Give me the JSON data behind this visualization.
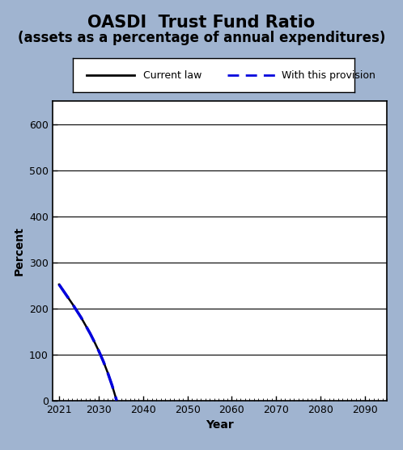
{
  "title": "OASDI  Trust Fund Ratio",
  "subtitle": "(assets as a percentage of annual expenditures)",
  "xlabel": "Year",
  "ylabel": "Percent",
  "bg_color": "#a0b4d0",
  "plot_bg_color": "#ffffff",
  "ylim": [
    0,
    650
  ],
  "xlim": [
    2019.5,
    2095
  ],
  "yticks": [
    0,
    100,
    200,
    300,
    400,
    500,
    600
  ],
  "xticks": [
    2021,
    2030,
    2040,
    2050,
    2060,
    2070,
    2080,
    2090
  ],
  "current_law_x": [
    2021,
    2022,
    2023,
    2024,
    2025,
    2026,
    2027,
    2028,
    2029,
    2030,
    2031,
    2032,
    2033,
    2034
  ],
  "current_law_y": [
    252,
    238,
    224,
    210,
    195,
    180,
    163,
    146,
    127,
    107,
    85,
    60,
    32,
    0
  ],
  "provision_x": [
    2021,
    2022,
    2023,
    2024,
    2025,
    2026,
    2027,
    2028,
    2029,
    2030,
    2031,
    2032,
    2033,
    2034
  ],
  "provision_y": [
    252,
    238,
    224,
    210,
    195,
    180,
    163,
    146,
    127,
    107,
    85,
    60,
    32,
    0
  ],
  "current_law_color": "#000000",
  "provision_color": "#0000dd",
  "title_fontsize": 15,
  "subtitle_fontsize": 12,
  "axis_label_fontsize": 10,
  "tick_fontsize": 9,
  "legend_fontsize": 9
}
